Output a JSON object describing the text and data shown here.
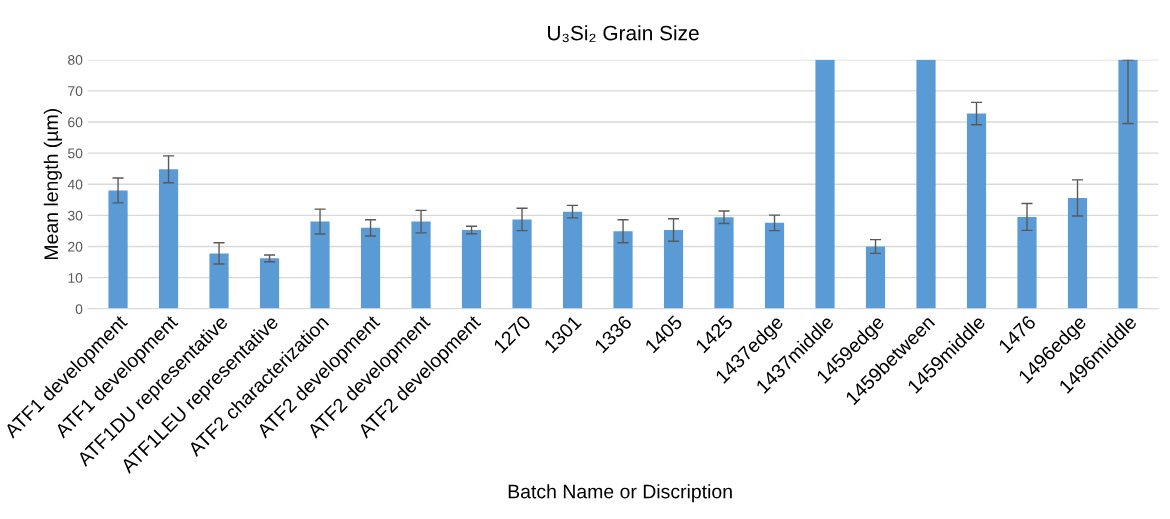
{
  "chart_data": {
    "type": "bar",
    "title": "U₃Si₂ Grain Size",
    "xlabel": "Batch Name or Discription",
    "ylabel": "Mean length (µm)",
    "categories": [
      "ATF1 development",
      "ATF1 development",
      "ATF1DU representative",
      "ATF1LEU representative",
      "ATF2 characterization",
      "ATF2 development",
      "ATF2 development",
      "ATF2 development",
      "1270",
      "1301",
      "1336",
      "1405",
      "1425",
      "1437edge",
      "1437middle",
      "1459edge",
      "1459between",
      "1459middle",
      "1476",
      "1496edge",
      "1496middle"
    ],
    "values": [
      38,
      44.8,
      17.8,
      16.2,
      28,
      26,
      28,
      25.3,
      28.7,
      31.2,
      24.9,
      25.3,
      29.4,
      27.6,
      80,
      20,
      80,
      62.7,
      29.5,
      35.6,
      80
    ],
    "errors": [
      4,
      4.3,
      3.4,
      1.1,
      4,
      2.6,
      3.6,
      1.2,
      3.6,
      2,
      3.7,
      3.6,
      2,
      2.5,
      null,
      2.2,
      null,
      3.6,
      4.3,
      5.8,
      [
        59.5,
        80
      ]
    ],
    "color": "#5b9bd5",
    "ylim": [
      0,
      80
    ],
    "yticks": [
      0,
      10,
      20,
      30,
      40,
      50,
      60,
      70,
      80
    ],
    "grid": "y",
    "legend": false
  }
}
